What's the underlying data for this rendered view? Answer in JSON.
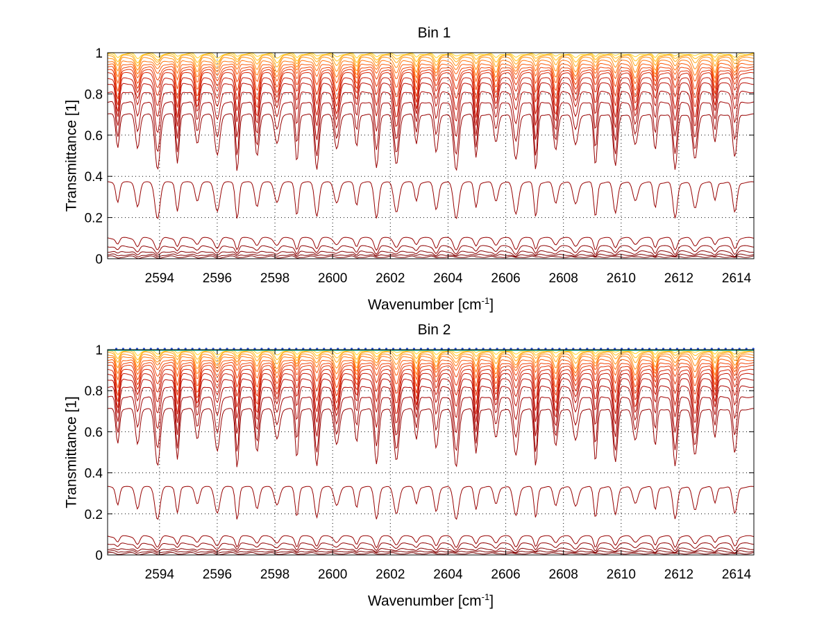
{
  "chart_data": [
    {
      "type": "line",
      "title": "Bin 1",
      "xlabel": "Wavenumber [cm",
      "xlabel_sup": "-1",
      "xlabel_end": "]",
      "ylabel": "Transmittance [1]",
      "xlim": [
        2592.2,
        2614.6
      ],
      "ylim": [
        0,
        1
      ],
      "xticks": [
        "2594",
        "2596",
        "2598",
        "2600",
        "2602",
        "2604",
        "2606",
        "2608",
        "2610",
        "2612",
        "2614"
      ],
      "yticks": [
        "0",
        "0.2",
        "0.4",
        "0.6",
        "0.8",
        "1"
      ],
      "grid": true,
      "line_spacing_cm1": 0.69,
      "first_line_cm1": 2592.55,
      "baselines": [
        0.995,
        0.99,
        0.985,
        0.975,
        0.96,
        0.945,
        0.93,
        0.915,
        0.9,
        0.875,
        0.85,
        0.81,
        0.76,
        0.7,
        0.37,
        0.1,
        0.06,
        0.035,
        0.02,
        0.01
      ],
      "line_minima": [
        0.97,
        0.95,
        0.93,
        0.9,
        0.87,
        0.84,
        0.8,
        0.76,
        0.72,
        0.67,
        0.62,
        0.55,
        0.47,
        0.4,
        0.18,
        0.04,
        0.02,
        0.01,
        0.005,
        0.002
      ],
      "series_colors": [
        "#ffd21f",
        "#ffbe1a",
        "#ffa616",
        "#ff8c12",
        "#ff740e",
        "#fb5a0b",
        "#f04409",
        "#e33207",
        "#d62306",
        "#c81705",
        "#bb0e04",
        "#ad0603",
        "#a00202",
        "#960000",
        "#960000",
        "#960000",
        "#8f0000",
        "#870000",
        "#800000",
        "#7a0000"
      ],
      "top_markers": false
    },
    {
      "type": "line",
      "title": "Bin 2",
      "xlabel": "Wavenumber [cm",
      "xlabel_sup": "-1",
      "xlabel_end": "]",
      "ylabel": "Transmittance [1]",
      "xlim": [
        2592.2,
        2614.6
      ],
      "ylim": [
        0,
        1
      ],
      "xticks": [
        "2594",
        "2596",
        "2598",
        "2600",
        "2602",
        "2604",
        "2606",
        "2608",
        "2610",
        "2612",
        "2614"
      ],
      "yticks": [
        "0",
        "0.2",
        "0.4",
        "0.6",
        "0.8",
        "1"
      ],
      "grid": true,
      "line_spacing_cm1": 0.69,
      "first_line_cm1": 2592.55,
      "baselines": [
        0.995,
        0.99,
        0.985,
        0.975,
        0.965,
        0.95,
        0.935,
        0.92,
        0.9,
        0.88,
        0.855,
        0.82,
        0.77,
        0.71,
        0.33,
        0.09,
        0.055,
        0.03,
        0.018,
        0.008
      ],
      "line_minima": [
        0.97,
        0.95,
        0.93,
        0.9,
        0.87,
        0.84,
        0.8,
        0.76,
        0.72,
        0.67,
        0.62,
        0.55,
        0.47,
        0.4,
        0.16,
        0.035,
        0.02,
        0.01,
        0.005,
        0.002
      ],
      "series_colors": [
        "#ffd21f",
        "#ffbe1a",
        "#ffa616",
        "#ff8c12",
        "#ff740e",
        "#fb5a0b",
        "#f04409",
        "#e33207",
        "#d62306",
        "#c81705",
        "#bb0e04",
        "#ad0603",
        "#a00202",
        "#960000",
        "#960000",
        "#960000",
        "#8f0000",
        "#870000",
        "#800000",
        "#7a0000"
      ],
      "top_markers": true,
      "top_marker_color": "#1f4fd6",
      "top_line_color": "#16a99a"
    }
  ]
}
